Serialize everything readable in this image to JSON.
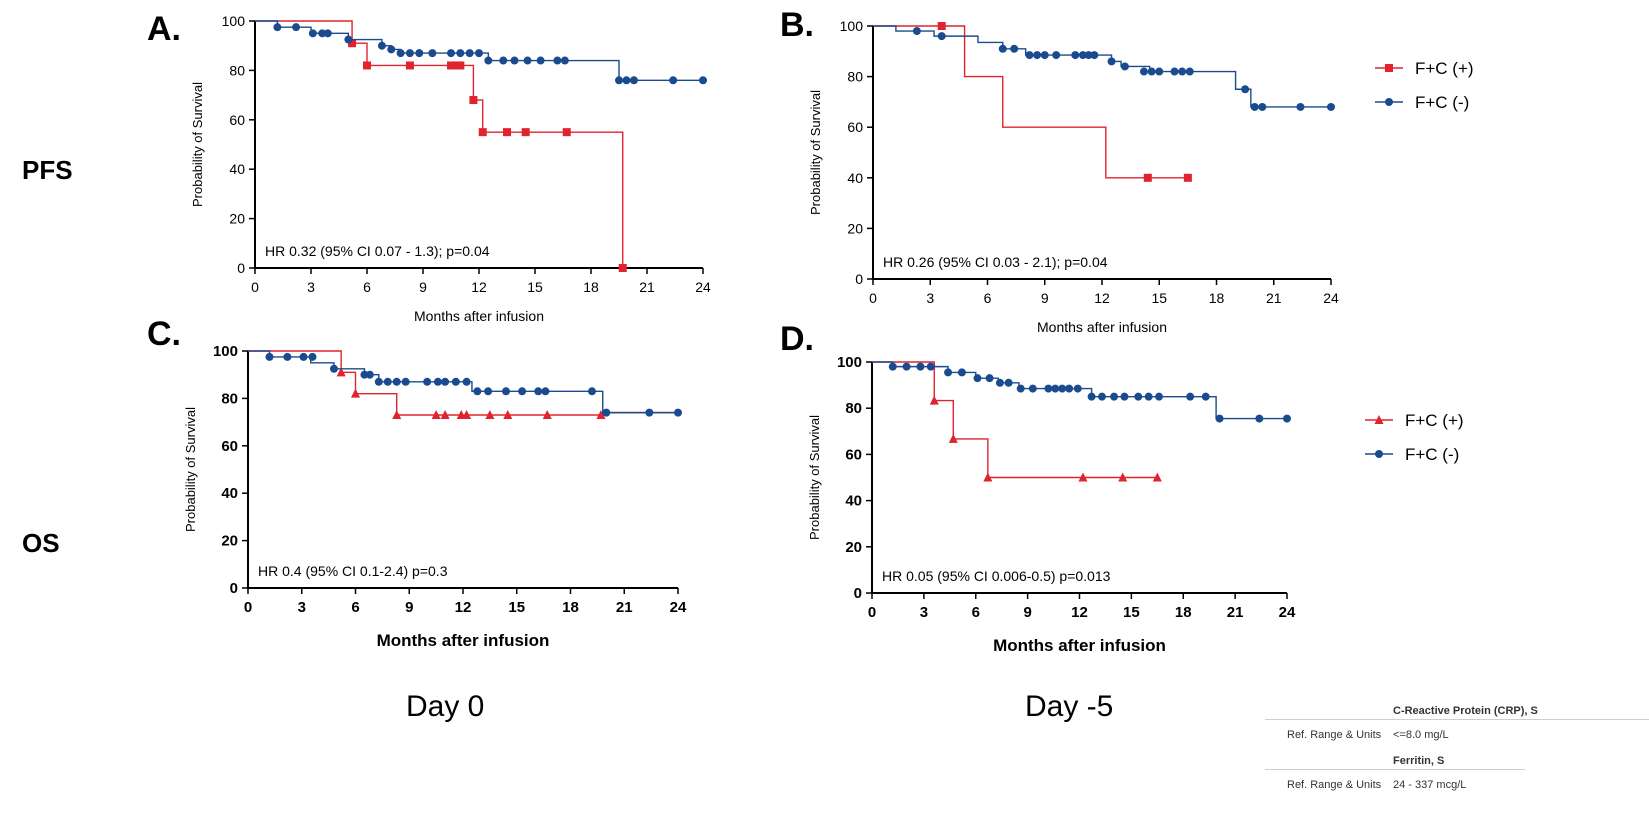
{
  "row_labels": {
    "pfs": "PFS",
    "os": "OS"
  },
  "column_labels": {
    "day0": "Day 0",
    "day_minus5": "Day -5"
  },
  "colors": {
    "fc_pos": "#e0232e",
    "fc_neg": "#1b4b8f"
  },
  "chart_data": [
    {
      "id": "A",
      "type": "line",
      "subtype": "kaplan-meier-step",
      "panel_label": "A.",
      "ylabel": "Probability of Survival",
      "xlabel": "Months after infusion",
      "xlim": [
        0,
        24
      ],
      "ylim": [
        0,
        100
      ],
      "xticks": [
        "0",
        "3",
        "6",
        "9",
        "12",
        "15",
        "18",
        "21",
        "24"
      ],
      "yticks": [
        "0",
        "20",
        "40",
        "60",
        "80",
        "100"
      ],
      "annotation": "HR 0.32 (95% CI 0.07 - 1.3); p=0.04",
      "legend": false,
      "bold_xlabel": false,
      "series": [
        {
          "name": "F+C (+)",
          "marker": "square",
          "steps": [
            [
              0,
              100
            ],
            [
              5.2,
              91
            ],
            [
              6,
              82
            ],
            [
              11.7,
              68
            ],
            [
              12.2,
              55
            ],
            [
              19.7,
              0
            ]
          ],
          "censored": [
            [
              5.2,
              91
            ],
            [
              6,
              82
            ],
            [
              8.3,
              82
            ],
            [
              10.5,
              82
            ],
            [
              10.8,
              82
            ],
            [
              11,
              82
            ],
            [
              11.7,
              68
            ],
            [
              12.2,
              55
            ],
            [
              13.5,
              55
            ],
            [
              14.5,
              55
            ],
            [
              16.7,
              55
            ],
            [
              19.7,
              0
            ]
          ]
        },
        {
          "name": "F+C (-)",
          "marker": "circle",
          "steps": [
            [
              0,
              100
            ],
            [
              1.2,
              97.5
            ],
            [
              3,
              95
            ],
            [
              5,
              92.5
            ],
            [
              6.8,
              90
            ],
            [
              7.3,
              88.5
            ],
            [
              7.8,
              87
            ],
            [
              12.5,
              84
            ],
            [
              19.5,
              76
            ],
            [
              24,
              76
            ]
          ],
          "censored": [
            [
              1.2,
              97.5
            ],
            [
              2.2,
              97.5
            ],
            [
              3.1,
              95
            ],
            [
              3.6,
              95
            ],
            [
              3.9,
              95
            ],
            [
              5,
              92.5
            ],
            [
              6.8,
              90
            ],
            [
              7.3,
              88.5
            ],
            [
              7.8,
              87
            ],
            [
              8.3,
              87
            ],
            [
              8.8,
              87
            ],
            [
              9.5,
              87
            ],
            [
              10.5,
              87
            ],
            [
              11,
              87
            ],
            [
              11.5,
              87
            ],
            [
              12,
              87
            ],
            [
              12.5,
              84
            ],
            [
              13.3,
              84
            ],
            [
              13.9,
              84
            ],
            [
              14.6,
              84
            ],
            [
              15.3,
              84
            ],
            [
              16.2,
              84
            ],
            [
              16.6,
              84
            ],
            [
              19.5,
              76
            ],
            [
              19.9,
              76
            ],
            [
              20.3,
              76
            ],
            [
              22.4,
              76
            ],
            [
              24,
              76
            ]
          ]
        }
      ]
    },
    {
      "id": "B",
      "type": "line",
      "subtype": "kaplan-meier-step",
      "panel_label": "B.",
      "ylabel": "Probability of Survival",
      "xlabel": "Months after infusion",
      "xlim": [
        0,
        24
      ],
      "ylim": [
        0,
        100
      ],
      "xticks": [
        "0",
        "3",
        "6",
        "9",
        "12",
        "15",
        "18",
        "21",
        "24"
      ],
      "yticks": [
        "0",
        "20",
        "40",
        "60",
        "80",
        "100"
      ],
      "annotation": "HR 0.26 (95% CI 0.03 - 2.1); p=0.04",
      "legend": true,
      "bold_xlabel": false,
      "series": [
        {
          "name": "F+C (+)",
          "marker": "square",
          "steps": [
            [
              0,
              100
            ],
            [
              4.8,
              80
            ],
            [
              6.8,
              60
            ],
            [
              12.2,
              40
            ],
            [
              16.5,
              40
            ]
          ],
          "censored": [
            [
              3.6,
              100
            ],
            [
              14.4,
              40
            ],
            [
              16.5,
              40
            ]
          ]
        },
        {
          "name": "F+C (-)",
          "marker": "circle",
          "steps": [
            [
              0,
              100
            ],
            [
              1.2,
              98
            ],
            [
              3.2,
              96
            ],
            [
              5.5,
              93.5
            ],
            [
              6.8,
              91
            ],
            [
              8,
              88.5
            ],
            [
              12.5,
              86
            ],
            [
              13,
              84
            ],
            [
              14.5,
              82
            ],
            [
              19,
              75
            ],
            [
              19.8,
              68
            ],
            [
              24,
              68
            ]
          ],
          "censored": [
            [
              2.3,
              98
            ],
            [
              3.6,
              96
            ],
            [
              6.8,
              91
            ],
            [
              7.4,
              91
            ],
            [
              8.2,
              88.5
            ],
            [
              8.6,
              88.5
            ],
            [
              9,
              88.5
            ],
            [
              9.6,
              88.5
            ],
            [
              10.6,
              88.5
            ],
            [
              11,
              88.5
            ],
            [
              11.3,
              88.5
            ],
            [
              11.6,
              88.5
            ],
            [
              12.5,
              86
            ],
            [
              13.2,
              84
            ],
            [
              14.2,
              82
            ],
            [
              14.6,
              82
            ],
            [
              15,
              82
            ],
            [
              15.8,
              82
            ],
            [
              16.2,
              82
            ],
            [
              16.6,
              82
            ],
            [
              19.5,
              75
            ],
            [
              20,
              68
            ],
            [
              20.4,
              68
            ],
            [
              22.4,
              68
            ],
            [
              24,
              68
            ]
          ]
        }
      ]
    },
    {
      "id": "C",
      "type": "line",
      "subtype": "kaplan-meier-step",
      "panel_label": "C.",
      "ylabel": "Probability of Survival",
      "xlabel": "Months after infusion",
      "xlim": [
        0,
        24
      ],
      "ylim": [
        0,
        100
      ],
      "xticks": [
        "0",
        "3",
        "6",
        "9",
        "12",
        "15",
        "18",
        "21",
        "24"
      ],
      "yticks": [
        "0",
        "20",
        "40",
        "60",
        "80",
        "100"
      ],
      "annotation": "HR 0.4 (95% CI 0.1-2.4) p=0.3",
      "legend": false,
      "bold_xlabel": true,
      "series": [
        {
          "name": "F+C (+)",
          "marker": "triangle",
          "steps": [
            [
              0,
              100
            ],
            [
              5.2,
              91
            ],
            [
              6,
              82
            ],
            [
              8.3,
              73
            ],
            [
              19.7,
              73
            ],
            [
              20,
              74
            ],
            [
              24,
              74
            ]
          ],
          "censored": [
            [
              5.2,
              91
            ],
            [
              6,
              82
            ],
            [
              8.3,
              73
            ],
            [
              10.5,
              73
            ],
            [
              11,
              73
            ],
            [
              11.9,
              73
            ],
            [
              12.2,
              73
            ],
            [
              13.5,
              73
            ],
            [
              14.5,
              73
            ],
            [
              16.7,
              73
            ],
            [
              19.7,
              73
            ]
          ]
        },
        {
          "name": "F+C (-)",
          "marker": "circle",
          "steps": [
            [
              0,
              100
            ],
            [
              1.2,
              97.5
            ],
            [
              3.5,
              95
            ],
            [
              4.8,
              92.5
            ],
            [
              6.5,
              90
            ],
            [
              7.3,
              87
            ],
            [
              12.5,
              83
            ],
            [
              19.8,
              74
            ],
            [
              24,
              74
            ]
          ],
          "censored": [
            [
              1.2,
              97.5
            ],
            [
              2.2,
              97.5
            ],
            [
              3.1,
              97.5
            ],
            [
              3.6,
              97.5
            ],
            [
              4.8,
              92.5
            ],
            [
              6.5,
              90
            ],
            [
              6.8,
              90
            ],
            [
              7.3,
              87
            ],
            [
              7.8,
              87
            ],
            [
              8.3,
              87
            ],
            [
              8.8,
              87
            ],
            [
              10,
              87
            ],
            [
              10.6,
              87
            ],
            [
              11,
              87
            ],
            [
              11.6,
              87
            ],
            [
              12.2,
              87
            ],
            [
              12.8,
              83
            ],
            [
              13.4,
              83
            ],
            [
              14.4,
              83
            ],
            [
              15.3,
              83
            ],
            [
              16.2,
              83
            ],
            [
              16.6,
              83
            ],
            [
              19.2,
              83
            ],
            [
              20,
              74
            ],
            [
              22.4,
              74
            ],
            [
              24,
              74
            ]
          ]
        }
      ]
    },
    {
      "id": "D",
      "type": "line",
      "subtype": "kaplan-meier-step",
      "panel_label": "D.",
      "ylabel": "Probability of Survival",
      "xlabel": "Months after infusion",
      "xlim": [
        0,
        24
      ],
      "ylim": [
        0,
        100
      ],
      "xticks": [
        "0",
        "3",
        "6",
        "9",
        "12",
        "15",
        "18",
        "21",
        "24"
      ],
      "yticks": [
        "0",
        "20",
        "40",
        "60",
        "80",
        "100"
      ],
      "annotation": "HR 0.05 (95% CI 0.006-0.5) p=0.013",
      "legend": true,
      "bold_xlabel": true,
      "series": [
        {
          "name": "F+C (+)",
          "marker": "triangle",
          "steps": [
            [
              0,
              100
            ],
            [
              3.6,
              83.3
            ],
            [
              4.7,
              66.7
            ],
            [
              6.7,
              50
            ],
            [
              16.5,
              50
            ]
          ],
          "censored": [
            [
              3.6,
              83.3
            ],
            [
              4.7,
              66.7
            ],
            [
              6.7,
              50
            ],
            [
              12.2,
              50
            ],
            [
              14.5,
              50
            ],
            [
              16.5,
              50
            ]
          ]
        },
        {
          "name": "F+C (-)",
          "marker": "circle",
          "steps": [
            [
              0,
              100
            ],
            [
              1.2,
              98
            ],
            [
              4.4,
              95.5
            ],
            [
              6,
              93
            ],
            [
              7.3,
              91
            ],
            [
              8.5,
              88.5
            ],
            [
              12.7,
              85
            ],
            [
              19.9,
              75.5
            ],
            [
              24,
              75.5
            ]
          ],
          "censored": [
            [
              1.2,
              98
            ],
            [
              2,
              98
            ],
            [
              2.8,
              98
            ],
            [
              3.4,
              98
            ],
            [
              4.4,
              95.5
            ],
            [
              5.2,
              95.5
            ],
            [
              6.1,
              93
            ],
            [
              6.8,
              93
            ],
            [
              7.4,
              91
            ],
            [
              7.9,
              91
            ],
            [
              8.6,
              88.5
            ],
            [
              9.3,
              88.5
            ],
            [
              10.2,
              88.5
            ],
            [
              10.6,
              88.5
            ],
            [
              11,
              88.5
            ],
            [
              11.4,
              88.5
            ],
            [
              11.9,
              88.5
            ],
            [
              12.7,
              85
            ],
            [
              13.3,
              85
            ],
            [
              14,
              85
            ],
            [
              14.6,
              85
            ],
            [
              15.4,
              85
            ],
            [
              16,
              85
            ],
            [
              16.6,
              85
            ],
            [
              18.4,
              85
            ],
            [
              19.3,
              85
            ],
            [
              20.1,
              75.5
            ],
            [
              22.4,
              75.5
            ],
            [
              24,
              75.5
            ]
          ]
        }
      ]
    }
  ],
  "lab_table": {
    "crp_name": "C-Reactive Protein (CRP), S",
    "crp_ref_label": "Ref. Range & Units",
    "crp_ref_value": "<=8.0 mg/L",
    "ferritin_name": "Ferritin, S",
    "ferritin_ref_label": "Ref. Range & Units",
    "ferritin_ref_value": "24 - 337 mcg/L"
  }
}
